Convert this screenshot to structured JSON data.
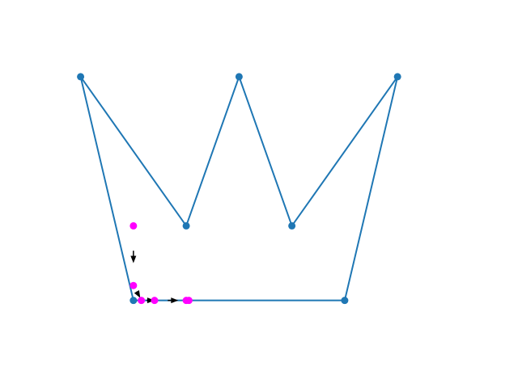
{
  "colors": {
    "background": "#ffffff",
    "polygon": "#1f77b4",
    "vertex": "#1f77b4",
    "path_point": "#ff00ff",
    "arrow": "#000000"
  },
  "icons": {
    "vertex": "filled-circle",
    "path_point": "filled-circle",
    "arrow": "arrowhead"
  },
  "chart_data": {
    "type": "scatter",
    "title": "",
    "xlabel": "",
    "ylabel": "",
    "axes_visible": false,
    "grid": false,
    "xlim": [
      -0.3,
      7.3
    ],
    "ylim": [
      -0.9,
      5.1
    ],
    "series": [
      {
        "kind": "closed-polyline-with-vertices",
        "points": [
          [
            1,
            0
          ],
          [
            5,
            0
          ],
          [
            6,
            4.5
          ],
          [
            4,
            1.5
          ],
          [
            3,
            4.5
          ],
          [
            2,
            1.5
          ],
          [
            0,
            4.5
          ]
        ]
      },
      {
        "kind": "points",
        "points": [
          [
            1,
            1.5
          ],
          [
            1,
            0.3
          ],
          [
            1.15,
            0
          ],
          [
            1.4,
            0
          ],
          [
            2,
            0
          ],
          [
            2.05,
            0
          ]
        ]
      },
      {
        "kind": "arrows",
        "segments": [
          [
            [
              1,
              1
            ],
            [
              1,
              0.75
            ]
          ],
          [
            [
              1.06,
              0.18
            ],
            [
              1.13,
              0.05
            ]
          ],
          [
            [
              1.25,
              0
            ],
            [
              1.4,
              0
            ]
          ],
          [
            [
              1.65,
              0
            ],
            [
              1.85,
              0
            ]
          ]
        ]
      }
    ]
  }
}
